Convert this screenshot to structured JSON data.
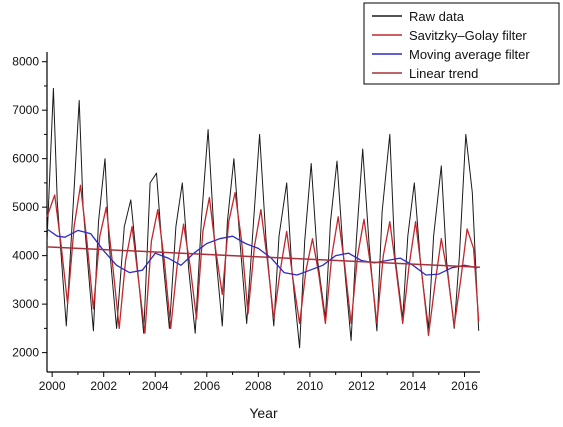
{
  "chart_data": {
    "type": "line",
    "xlabel": "Year",
    "ylabel": "",
    "xlim": [
      1999.8,
      2016.6
    ],
    "ylim": [
      1600,
      8200
    ],
    "xticks": [
      2000,
      2002,
      2004,
      2006,
      2008,
      2010,
      2012,
      2014,
      2016
    ],
    "yticks": [
      2000,
      3000,
      4000,
      5000,
      6000,
      7000,
      8000
    ],
    "grid": false,
    "legend_position": "top-right",
    "series": [
      {
        "name": "Raw data",
        "color": "#1a1a1a",
        "x": [
          1999.8,
          2000.05,
          2000.2,
          2000.55,
          2000.8,
          2001.05,
          2001.2,
          2001.6,
          2001.8,
          2002.05,
          2002.2,
          2002.5,
          2002.8,
          2003.05,
          2003.3,
          2003.55,
          2003.8,
          2004.05,
          2004.3,
          2004.55,
          2004.8,
          2005.05,
          2005.3,
          2005.55,
          2005.8,
          2006.05,
          2006.3,
          2006.6,
          2006.8,
          2007.05,
          2007.3,
          2007.55,
          2007.8,
          2008.05,
          2008.3,
          2008.6,
          2008.8,
          2009.1,
          2009.3,
          2009.6,
          2009.8,
          2010.05,
          2010.3,
          2010.6,
          2010.8,
          2011.05,
          2011.3,
          2011.6,
          2011.8,
          2012.05,
          2012.3,
          2012.6,
          2012.8,
          2013.1,
          2013.3,
          2013.6,
          2013.8,
          2014.05,
          2014.3,
          2014.6,
          2014.8,
          2015.1,
          2015.3,
          2015.6,
          2015.8,
          2016.05,
          2016.3,
          2016.55
        ],
        "values": [
          4300,
          7450,
          5100,
          2550,
          4900,
          7200,
          5000,
          2450,
          4700,
          6000,
          4300,
          2500,
          4600,
          5150,
          3800,
          2400,
          5500,
          5700,
          3900,
          2500,
          4600,
          5500,
          3700,
          2400,
          4800,
          6600,
          4300,
          2550,
          4700,
          6000,
          4200,
          2600,
          4600,
          6500,
          4300,
          2550,
          4400,
          5500,
          3700,
          2100,
          4300,
          5900,
          3900,
          2700,
          4700,
          5950,
          4000,
          2250,
          4300,
          6200,
          4200,
          2450,
          4900,
          6500,
          4000,
          2700,
          4400,
          5500,
          3800,
          2500,
          4400,
          5850,
          3900,
          2500,
          4000,
          6500,
          5300,
          2450
        ]
      },
      {
        "name": "Savitzky–Golay filter",
        "color": "#c0282d",
        "x": [
          1999.8,
          2000.1,
          2000.35,
          2000.6,
          2000.85,
          2001.1,
          2001.35,
          2001.6,
          2001.85,
          2002.1,
          2002.35,
          2002.6,
          2002.85,
          2003.1,
          2003.35,
          2003.6,
          2003.85,
          2004.1,
          2004.35,
          2004.6,
          2004.85,
          2005.1,
          2005.35,
          2005.6,
          2005.85,
          2006.1,
          2006.35,
          2006.6,
          2006.85,
          2007.1,
          2007.35,
          2007.6,
          2007.85,
          2008.1,
          2008.35,
          2008.6,
          2008.85,
          2009.1,
          2009.35,
          2009.6,
          2009.85,
          2010.1,
          2010.35,
          2010.6,
          2010.85,
          2011.1,
          2011.35,
          2011.6,
          2011.85,
          2012.1,
          2012.35,
          2012.6,
          2012.85,
          2013.1,
          2013.35,
          2013.6,
          2013.85,
          2014.1,
          2014.35,
          2014.6,
          2014.85,
          2015.1,
          2015.35,
          2015.6,
          2015.85,
          2016.1,
          2016.35,
          2016.55
        ],
        "values": [
          4800,
          5250,
          4200,
          3000,
          4600,
          5450,
          4300,
          2900,
          4400,
          5000,
          3800,
          2500,
          3900,
          4600,
          3500,
          2400,
          4300,
          4950,
          3900,
          2500,
          3800,
          4650,
          3800,
          2700,
          4500,
          5200,
          4100,
          3200,
          4700,
          5300,
          4300,
          2800,
          4200,
          4950,
          3900,
          2700,
          3700,
          4500,
          3500,
          2600,
          3700,
          4350,
          3600,
          2600,
          4000,
          4800,
          3800,
          2600,
          4000,
          4750,
          3800,
          2600,
          4000,
          4700,
          3700,
          2600,
          3800,
          4700,
          3600,
          2350,
          3400,
          4350,
          3600,
          2550,
          3500,
          4550,
          4150,
          2650
        ]
      },
      {
        "name": "Moving average filter",
        "color": "#2c2cc8",
        "x": [
          1999.8,
          2000.2,
          2000.5,
          2001.0,
          2001.5,
          2002.0,
          2002.5,
          2003.0,
          2003.5,
          2004.0,
          2004.5,
          2005.0,
          2005.5,
          2006.0,
          2006.5,
          2007.0,
          2007.5,
          2008.0,
          2008.5,
          2009.0,
          2009.5,
          2010.0,
          2010.5,
          2011.0,
          2011.5,
          2012.0,
          2012.5,
          2013.0,
          2013.5,
          2014.0,
          2014.5,
          2015.0,
          2015.5,
          2016.0,
          2016.5
        ],
        "values": [
          4550,
          4400,
          4380,
          4520,
          4450,
          4100,
          3800,
          3650,
          3700,
          4050,
          3950,
          3800,
          4050,
          4250,
          4350,
          4400,
          4250,
          4150,
          3950,
          3650,
          3600,
          3700,
          3800,
          4000,
          4050,
          3900,
          3850,
          3900,
          3950,
          3800,
          3600,
          3620,
          3750,
          3800,
          3750
        ]
      },
      {
        "name": "Linear trend",
        "color": "#a8323c",
        "x": [
          1999.8,
          2016.6
        ],
        "values": [
          4180,
          3760
        ]
      }
    ]
  }
}
